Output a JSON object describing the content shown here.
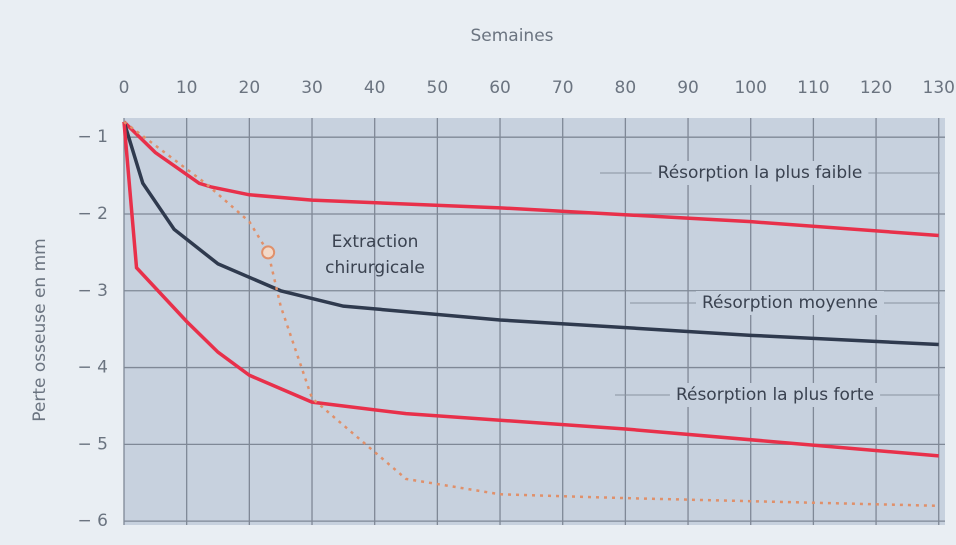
{
  "chart_data": {
    "type": "line",
    "x_label": "Semaines",
    "y_label": "Perte osseuse  en mm",
    "xlim": [
      0,
      131
    ],
    "xticks": [
      0,
      10,
      20,
      30,
      40,
      50,
      60,
      70,
      80,
      90,
      100,
      110,
      120,
      130
    ],
    "ylim": [
      -6.05,
      -0.75
    ],
    "yticks": [
      {
        "value": -1,
        "label": "− 1"
      },
      {
        "value": -2,
        "label": "− 2"
      },
      {
        "value": -3,
        "label": "− 3"
      },
      {
        "value": -4,
        "label": "− 4"
      },
      {
        "value": -5,
        "label": "− 5"
      },
      {
        "value": -6,
        "label": "− 6"
      }
    ],
    "grid": true,
    "series": [
      {
        "name": "Résorption la plus faible",
        "color": "#e8304a",
        "style": "solid",
        "x": [
          0,
          5,
          12,
          14,
          20,
          30,
          60,
          100,
          130
        ],
        "values": [
          -0.8,
          -1.2,
          -1.6,
          -1.65,
          -1.75,
          -1.82,
          -1.92,
          -2.1,
          -2.28
        ]
      },
      {
        "name": "Résorption moyenne",
        "color": "#2f3a4e",
        "style": "solid",
        "x": [
          0,
          3,
          8,
          15,
          25,
          35,
          60,
          100,
          130
        ],
        "values": [
          -0.8,
          -1.6,
          -2.2,
          -2.65,
          -3.0,
          -3.2,
          -3.38,
          -3.58,
          -3.7
        ]
      },
      {
        "name": "Résorption la plus forte",
        "color": "#e8304a",
        "style": "solid",
        "x": [
          0,
          2,
          10,
          15,
          20,
          30,
          45,
          80,
          130
        ],
        "values": [
          -0.8,
          -2.7,
          -3.4,
          -3.8,
          -4.1,
          -4.45,
          -4.6,
          -4.8,
          -5.15
        ]
      },
      {
        "name": "Extraction chirurgicale",
        "color": "#e0906a",
        "style": "dotted",
        "x": [
          0,
          13,
          20,
          23,
          25,
          30,
          40,
          45,
          60,
          80,
          130
        ],
        "values": [
          -0.8,
          -1.6,
          -2.1,
          -2.5,
          -3.2,
          -4.4,
          -5.1,
          -5.45,
          -5.65,
          -5.7,
          -5.8
        ]
      }
    ]
  }
}
